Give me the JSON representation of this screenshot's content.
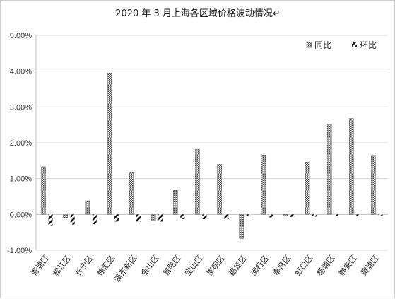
{
  "chart_data": {
    "type": "bar",
    "title": "2020 年 3 月上海各区域价格波动情况↵",
    "categories": [
      "青浦区",
      "松江区",
      "长宁区",
      "徐汇区",
      "浦东新区",
      "金山区",
      "普陀区",
      "宝山区",
      "崇明区",
      "嘉定区",
      "闵行区",
      "奉贤区",
      "虹口区",
      "杨浦区",
      "静安区",
      "黄浦区"
    ],
    "series": [
      {
        "name": "同比",
        "pattern": "crosshatch",
        "values": [
          1.33,
          -0.1,
          0.38,
          3.95,
          1.17,
          -0.18,
          0.67,
          1.82,
          1.4,
          -0.67,
          1.66,
          -0.03,
          1.46,
          2.52,
          2.68,
          1.65
        ]
      },
      {
        "name": "环比",
        "pattern": "diagonal",
        "values": [
          -0.32,
          -0.28,
          -0.27,
          -0.2,
          -0.2,
          -0.2,
          -0.13,
          -0.13,
          -0.13,
          -0.05,
          -0.08,
          -0.07,
          -0.06,
          -0.04,
          -0.04,
          -0.05
        ]
      }
    ],
    "y_ticks": [
      "5.00%",
      "4.00%",
      "3.00%",
      "2.00%",
      "1.00%",
      "0.00%",
      "-1.00%"
    ],
    "ylim": [
      -1.0,
      5.0
    ],
    "y_step": 1.0,
    "grid": true,
    "legend_position": "top-right",
    "colors": {
      "bar": "#555555",
      "grid": "#d9d9d9",
      "axis": "#bfbfbf"
    }
  }
}
